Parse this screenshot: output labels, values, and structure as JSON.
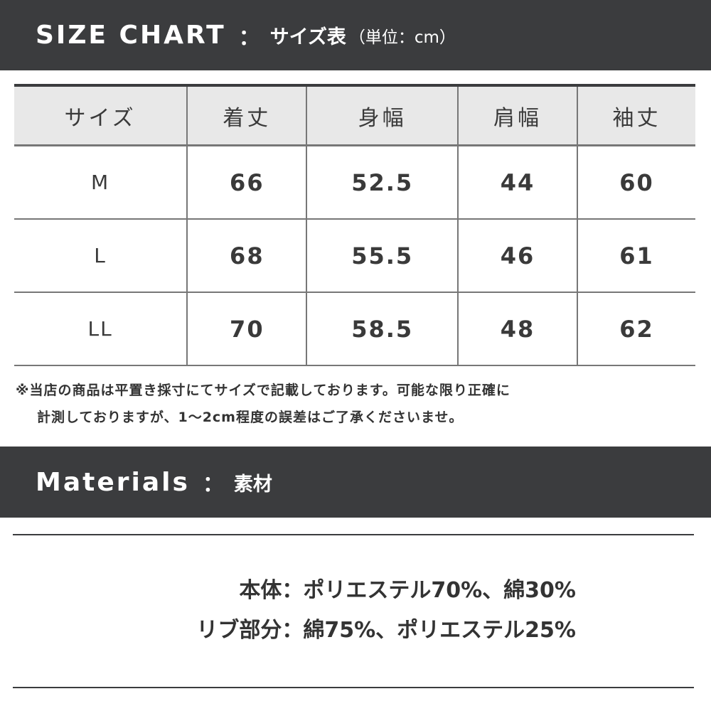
{
  "size_chart": {
    "title_en": "SIZE CHART",
    "separator": "：",
    "title_jp": "サイズ表",
    "unit": "（単位：cm）",
    "columns": [
      "サイズ",
      "着丈",
      "身幅",
      "肩幅",
      "袖丈"
    ],
    "rows": [
      [
        "M",
        "66",
        "52.5",
        "44",
        "60"
      ],
      [
        "L",
        "68",
        "55.5",
        "46",
        "61"
      ],
      [
        "LL",
        "70",
        "58.5",
        "48",
        "62"
      ]
    ],
    "note_line1": "※当店の商品は平置き採寸にてサイズで記載しております。可能な限り正確に",
    "note_line2": "計測しておりますが、1～2cm程度の誤差はご了承くださいませ。"
  },
  "materials": {
    "title_en": "Materials",
    "separator": "：",
    "title_jp": "素材",
    "lines": [
      "本体：ポリエステル70%、綿30%",
      "リブ部分：綿75%、ポリエステル25%"
    ]
  }
}
